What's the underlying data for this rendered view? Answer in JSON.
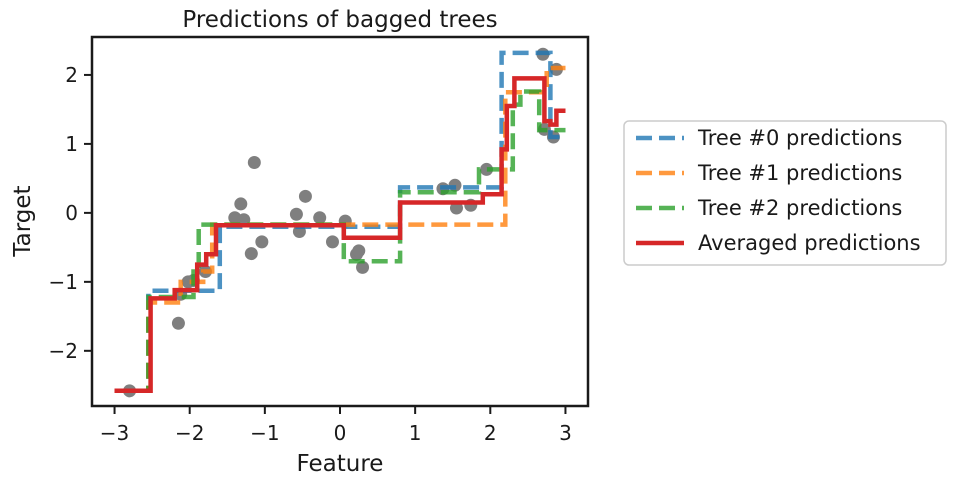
{
  "chart_data": {
    "type": "line",
    "title": "Predictions of bagged trees",
    "xlabel": "Feature",
    "ylabel": "Target",
    "xlim": [
      -3.3,
      3.3
    ],
    "ylim": [
      -2.8,
      2.55
    ],
    "xticks": [
      -3,
      -2,
      -1,
      0,
      1,
      2,
      3
    ],
    "xtick_labels": [
      "−3",
      "−2",
      "−1",
      "0",
      "1",
      "2",
      "3"
    ],
    "yticks": [
      -2,
      -1,
      0,
      1,
      2
    ],
    "ytick_labels": [
      "−2",
      "−1",
      "0",
      "1",
      "2"
    ],
    "grid": false,
    "legend_position": "outside-right",
    "scatter": {
      "color": "#7f7f7f",
      "points": [
        {
          "x": -2.8,
          "y": -2.58
        },
        {
          "x": -2.15,
          "y": -1.6
        },
        {
          "x": -2.12,
          "y": -1.18
        },
        {
          "x": -2.02,
          "y": -1.0
        },
        {
          "x": -1.95,
          "y": -0.98
        },
        {
          "x": -1.79,
          "y": -0.85
        },
        {
          "x": -1.4,
          "y": -0.07
        },
        {
          "x": -1.32,
          "y": 0.13
        },
        {
          "x": -1.28,
          "y": -0.1
        },
        {
          "x": -1.18,
          "y": -0.59
        },
        {
          "x": -1.14,
          "y": 0.73
        },
        {
          "x": -1.04,
          "y": -0.42
        },
        {
          "x": -0.58,
          "y": -0.02
        },
        {
          "x": -0.54,
          "y": -0.27
        },
        {
          "x": -0.46,
          "y": 0.24
        },
        {
          "x": -0.27,
          "y": -0.07
        },
        {
          "x": -0.1,
          "y": -0.42
        },
        {
          "x": 0.07,
          "y": -0.12
        },
        {
          "x": 0.22,
          "y": -0.6
        },
        {
          "x": 0.25,
          "y": -0.55
        },
        {
          "x": 0.3,
          "y": -0.79
        },
        {
          "x": 1.37,
          "y": 0.35
        },
        {
          "x": 1.53,
          "y": 0.4
        },
        {
          "x": 1.55,
          "y": 0.07
        },
        {
          "x": 1.74,
          "y": 0.11
        },
        {
          "x": 1.95,
          "y": 0.63
        },
        {
          "x": 2.7,
          "y": 2.3
        },
        {
          "x": 2.72,
          "y": 1.21
        },
        {
          "x": 2.84,
          "y": 1.1
        },
        {
          "x": 2.88,
          "y": 2.08
        }
      ]
    },
    "series": [
      {
        "name": "Tree #0 predictions",
        "color": "#1f77b4",
        "style": "dashed",
        "x": [
          -3.0,
          -2.55,
          -2.55,
          -1.6,
          -1.6,
          0.8,
          0.8,
          2.15,
          2.15,
          2.8,
          2.8,
          3.0
        ],
        "y": [
          -2.58,
          -2.58,
          -1.13,
          -1.13,
          -0.2,
          -0.2,
          0.37,
          0.37,
          2.32,
          2.32,
          1.1,
          1.1
        ]
      },
      {
        "name": "Tree #1 predictions",
        "color": "#ff7f0e",
        "style": "dashed",
        "x": [
          -3.0,
          -2.55,
          -2.55,
          -2.12,
          -2.12,
          -1.82,
          -1.82,
          -1.7,
          -1.7,
          2.2,
          2.2,
          2.3,
          2.3,
          2.75,
          2.75,
          3.0
        ],
        "y": [
          -2.58,
          -2.58,
          -1.3,
          -1.3,
          -1.0,
          -1.0,
          -0.85,
          -0.85,
          -0.17,
          -0.17,
          1.75,
          1.75,
          1.75,
          1.75,
          2.1,
          2.1
        ]
      },
      {
        "name": "Tree #2 predictions",
        "color": "#2ca02c",
        "style": "dashed",
        "x": [
          -3.0,
          -2.55,
          -2.55,
          -1.95,
          -1.95,
          -1.88,
          -1.88,
          -1.7,
          -1.7,
          0.05,
          0.05,
          0.8,
          0.8,
          1.85,
          1.85,
          2.3,
          2.3,
          2.4,
          2.4,
          2.65,
          2.65,
          2.8,
          2.8,
          3.0
        ],
        "y": [
          -2.58,
          -2.58,
          -1.22,
          -1.22,
          -0.85,
          -0.85,
          -0.17,
          -0.17,
          -0.17,
          -0.17,
          -0.7,
          -0.7,
          0.3,
          0.3,
          0.63,
          0.63,
          1.57,
          1.57,
          1.76,
          1.76,
          1.2,
          1.2,
          1.2,
          1.2
        ]
      },
      {
        "name": "Averaged predictions",
        "color": "#d62728",
        "style": "solid",
        "x": [
          -3.0,
          -2.52,
          -2.52,
          -2.2,
          -2.2,
          -2.0,
          -2.0,
          -1.9,
          -1.9,
          -1.78,
          -1.78,
          -1.65,
          -1.65,
          0.05,
          0.05,
          0.8,
          0.8,
          1.9,
          1.9,
          2.15,
          2.15,
          2.22,
          2.22,
          2.32,
          2.32,
          2.72,
          2.72,
          2.8,
          2.8,
          2.88,
          2.88,
          3.0
        ],
        "y": [
          -2.58,
          -2.58,
          -1.24,
          -1.24,
          -1.12,
          -1.12,
          -1.12,
          -1.12,
          -0.75,
          -0.75,
          -0.6,
          -0.6,
          -0.18,
          -0.18,
          -0.36,
          -0.36,
          0.15,
          0.15,
          0.27,
          0.27,
          0.92,
          0.92,
          1.55,
          1.55,
          1.95,
          1.95,
          1.33,
          1.33,
          1.28,
          1.28,
          1.48,
          1.48
        ]
      }
    ]
  }
}
